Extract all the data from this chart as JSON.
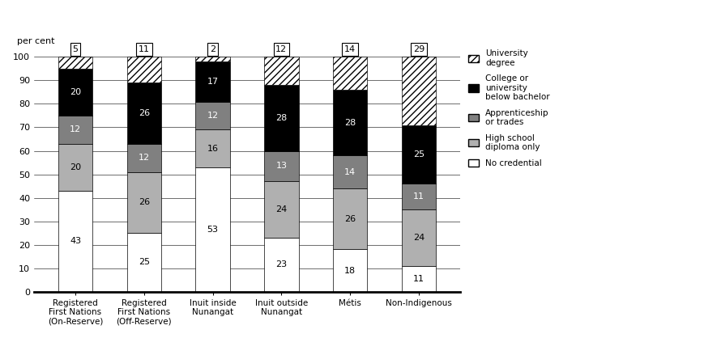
{
  "categories": [
    "Registered\nFirst Nations\n(On-Reserve)",
    "Registered\nFirst Nations\n(Off-Reserve)",
    "Inuit inside\nNunangat",
    "Inuit outside\nNunangat",
    "Métis",
    "Non-Indigenous"
  ],
  "above_labels": [
    "5",
    "11",
    "2",
    "12",
    "14",
    "29"
  ],
  "segments": {
    "No credential": [
      43,
      25,
      53,
      23,
      18,
      11
    ],
    "High school diploma only": [
      20,
      26,
      16,
      24,
      26,
      24
    ],
    "Apprenticeship or trades": [
      12,
      12,
      12,
      13,
      14,
      11
    ],
    "College or university below bachelor": [
      20,
      26,
      17,
      28,
      28,
      25
    ],
    "University degree": [
      5,
      11,
      2,
      12,
      14,
      29
    ]
  },
  "colors": {
    "No credential": "#ffffff",
    "High school diploma only": "#b0b0b0",
    "Apprenticeship or trades": "#808080",
    "College or university below bachelor": "#000000",
    "University degree": "#ffffff"
  },
  "hatch": {
    "No credential": "",
    "High school diploma only": "",
    "Apprenticeship or trades": "",
    "College or university below bachelor": "",
    "University degree": "////"
  },
  "text_colors": {
    "No credential": "#000000",
    "High school diploma only": "#000000",
    "Apprenticeship or trades": "#ffffff",
    "College or university below bachelor": "#ffffff",
    "University degree": "none"
  },
  "ylabel": "per cent",
  "ylim": [
    0,
    100
  ],
  "bar_width": 0.5,
  "background_color": "#ffffff"
}
